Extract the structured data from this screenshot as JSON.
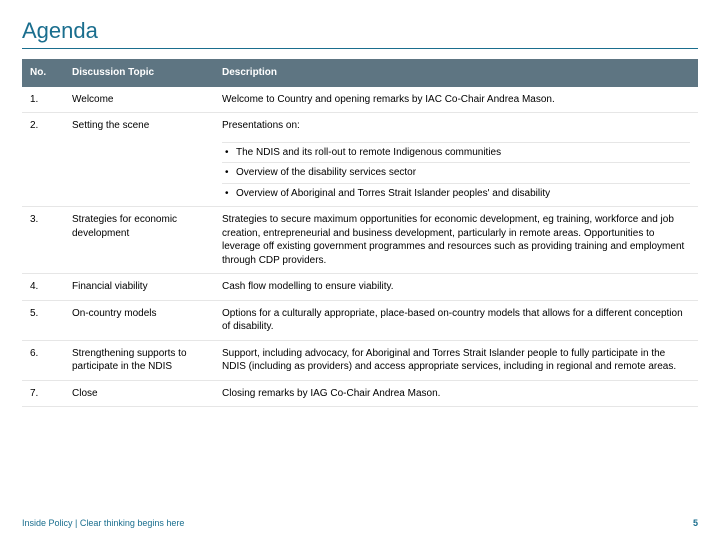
{
  "colors": {
    "title": "#1a6e8e",
    "title_rule": "#1a6e8e",
    "header_bg": "#5e7582",
    "header_text": "#ffffff",
    "footer": "#1a6e8e",
    "pagenum": "#1a6e8e"
  },
  "title": "Agenda",
  "columns": [
    "No.",
    "Discussion Topic",
    "Description"
  ],
  "rows": [
    {
      "no": "1.",
      "topic": "Welcome",
      "desc": "Welcome to Country and opening remarks by IAC Co-Chair Andrea Mason."
    },
    {
      "no": "2.",
      "topic": "Setting the scene",
      "desc": "Presentations on:"
    }
  ],
  "bullets": [
    "The NDIS and its roll-out to remote Indigenous communities",
    "Overview of the disability services sector",
    "Overview of Aboriginal and Torres Strait Islander peoples' and disability"
  ],
  "rows2": [
    {
      "no": "3.",
      "topic": "Strategies for economic development",
      "desc": "Strategies to secure maximum opportunities for economic development, eg training, workforce and job creation, entrepreneurial and business development, particularly in remote areas. Opportunities to leverage off existing government programmes and resources such as providing training and employment through CDP providers."
    },
    {
      "no": "4.",
      "topic": "Financial viability",
      "desc": "Cash flow modelling to ensure viability."
    },
    {
      "no": "5.",
      "topic": "On-country models",
      "desc": "Options for a culturally appropriate, place-based on-country models that allows for a different conception of disability."
    },
    {
      "no": "6.",
      "topic": "Strengthening supports to participate in the NDIS",
      "desc": "Support, including advocacy, for Aboriginal and Torres Strait Islander people to fully participate in the NDIS (including as providers) and access appropriate services, including in regional and remote areas."
    },
    {
      "no": "7.",
      "topic": "Close",
      "desc": "Closing remarks by IAG Co-Chair Andrea Mason."
    }
  ],
  "footer": "Inside Policy | Clear thinking begins here",
  "page_number": "5"
}
